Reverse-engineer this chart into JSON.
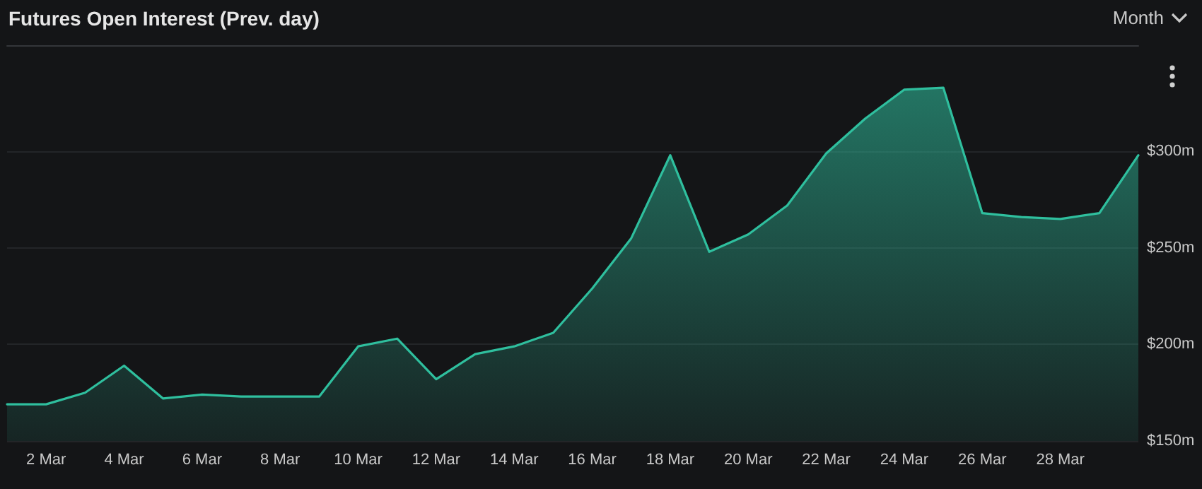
{
  "chart_data": {
    "type": "area",
    "title": "Futures Open Interest (Prev. day)",
    "categories": [
      null,
      "2 Mar",
      null,
      "4 Mar",
      null,
      "6 Mar",
      null,
      "8 Mar",
      null,
      "10 Mar",
      null,
      "12 Mar",
      null,
      "14 Mar",
      null,
      "16 Mar",
      null,
      "18 Mar",
      null,
      "20 Mar",
      null,
      "22 Mar",
      null,
      "24 Mar",
      null,
      "26 Mar",
      null,
      "28 Mar",
      null,
      null
    ],
    "series": [
      {
        "color": "#2fbf9e",
        "values": [
          169,
          169,
          175,
          189,
          172,
          174,
          173,
          173,
          173,
          199,
          203,
          182,
          195,
          199,
          206,
          229,
          255,
          298,
          248,
          257,
          272,
          299,
          317,
          332,
          333,
          268,
          266,
          265,
          268,
          298
        ]
      }
    ],
    "ylim": [
      150,
      355
    ],
    "yticks": [
      {
        "value": 150,
        "label": "$150m"
      },
      {
        "value": 200,
        "label": "$200m"
      },
      {
        "value": 250,
        "label": "$250m"
      },
      {
        "value": 300,
        "label": "$300m"
      }
    ],
    "grid": "y",
    "marker": "none",
    "line_style": "solid",
    "annotations": [
      "Month"
    ]
  }
}
